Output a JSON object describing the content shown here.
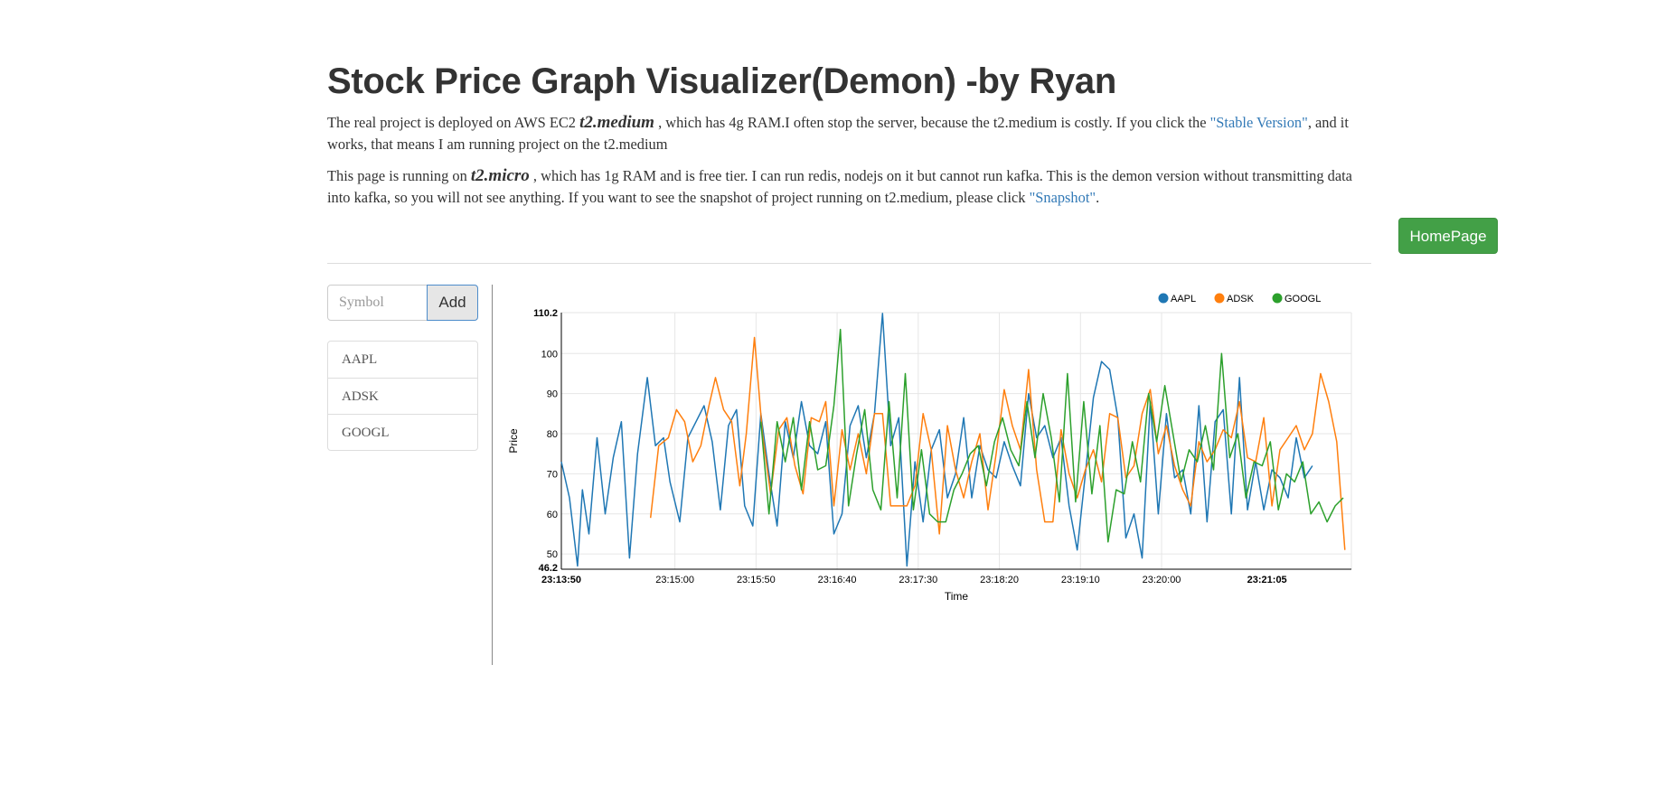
{
  "page": {
    "title": "Stock Price Graph Visualizer(Demon) -by Ryan",
    "para1": {
      "pre": "The real project is deployed on AWS EC2 ",
      "instance": "t2.medium",
      "mid": " , which has 4g RAM.I often stop the server, because the t2.medium is costly. If you click the ",
      "link": "\"Stable Version\"",
      "post": ", and it works, that means I am running project on the t2.medium"
    },
    "para2": {
      "pre": "This page is running on ",
      "instance": "t2.micro",
      "mid": " , which has 1g RAM and is free tier. I can run redis, nodejs on it but cannot run kafka. This is the demon version without transmitting data into kafka, so you will not see anything. If you want to see the snapshot of project running on t2.medium, please click ",
      "link": "\"Snapshot\"",
      "post": "."
    },
    "homepage_button": "HomePage"
  },
  "sidebar": {
    "symbol_placeholder": "Symbol",
    "add_button": "Add",
    "symbols": [
      "AAPL",
      "ADSK",
      "GOOGL"
    ]
  },
  "chart_data": {
    "type": "line",
    "xlabel": "Time",
    "ylabel": "Price",
    "ylim": [
      46.2,
      110.2
    ],
    "y_ticks": [
      50,
      60,
      70,
      80,
      90,
      100
    ],
    "y_extent_labels": [
      "46.2",
      "110.2"
    ],
    "xlim_seconds": [
      0,
      435
    ],
    "x_ticks": [
      {
        "t": 0,
        "label": "23:13:50",
        "bold": true
      },
      {
        "t": 70,
        "label": "23:15:00"
      },
      {
        "t": 120,
        "label": "23:15:50"
      },
      {
        "t": 170,
        "label": "23:16:40"
      },
      {
        "t": 220,
        "label": "23:17:30"
      },
      {
        "t": 270,
        "label": "23:18:20"
      },
      {
        "t": 320,
        "label": "23:19:10"
      },
      {
        "t": 370,
        "label": "23:20:00"
      },
      {
        "t": 435,
        "label": "23:21:05",
        "bold": true
      }
    ],
    "grid": true,
    "legend_position": "top-right",
    "series": [
      {
        "name": "AAPL",
        "color": "#1f77b4",
        "points": [
          [
            0,
            73
          ],
          [
            5,
            64
          ],
          [
            10,
            47
          ],
          [
            13,
            66
          ],
          [
            17,
            55
          ],
          [
            22,
            79
          ],
          [
            27,
            60
          ],
          [
            32,
            74
          ],
          [
            37,
            83
          ],
          [
            42,
            49
          ],
          [
            47,
            75
          ],
          [
            53,
            94
          ],
          [
            58,
            77
          ],
          [
            63,
            79
          ],
          [
            67,
            68
          ],
          [
            73,
            58
          ],
          [
            78,
            79
          ],
          [
            83,
            83
          ],
          [
            88,
            87
          ],
          [
            93,
            78
          ],
          [
            98,
            61
          ],
          [
            103,
            82
          ],
          [
            108,
            86
          ],
          [
            113,
            62
          ],
          [
            118,
            57
          ],
          [
            123,
            85
          ],
          [
            128,
            70
          ],
          [
            133,
            57
          ],
          [
            138,
            83
          ],
          [
            143,
            74
          ],
          [
            148,
            88
          ],
          [
            153,
            77
          ],
          [
            158,
            75
          ],
          [
            163,
            83
          ],
          [
            168,
            55
          ],
          [
            173,
            60
          ],
          [
            178,
            82
          ],
          [
            183,
            87
          ],
          [
            188,
            74
          ],
          [
            193,
            85
          ],
          [
            198,
            110
          ],
          [
            203,
            77
          ],
          [
            208,
            84
          ],
          [
            213,
            47
          ],
          [
            218,
            73
          ],
          [
            223,
            58
          ],
          [
            228,
            76
          ],
          [
            233,
            81
          ],
          [
            238,
            64
          ],
          [
            243,
            70
          ],
          [
            248,
            84
          ],
          [
            253,
            64
          ],
          [
            258,
            77
          ],
          [
            263,
            71
          ],
          [
            268,
            69
          ],
          [
            273,
            78
          ],
          [
            278,
            72
          ],
          [
            283,
            67
          ],
          [
            288,
            90
          ],
          [
            293,
            79
          ],
          [
            298,
            82
          ],
          [
            303,
            74
          ],
          [
            308,
            79
          ],
          [
            313,
            62
          ],
          [
            318,
            51
          ],
          [
            323,
            70
          ],
          [
            328,
            89
          ],
          [
            333,
            98
          ],
          [
            338,
            96
          ],
          [
            343,
            84
          ],
          [
            348,
            54
          ],
          [
            353,
            60
          ],
          [
            358,
            49
          ],
          [
            363,
            88
          ],
          [
            368,
            60
          ],
          [
            373,
            85
          ],
          [
            378,
            69
          ],
          [
            383,
            71
          ],
          [
            388,
            60
          ],
          [
            393,
            87
          ],
          [
            398,
            58
          ],
          [
            403,
            83
          ],
          [
            408,
            86
          ],
          [
            413,
            60
          ],
          [
            418,
            94
          ],
          [
            423,
            61
          ],
          [
            428,
            73
          ],
          [
            433,
            61
          ],
          [
            438,
            71
          ],
          [
            443,
            69
          ],
          [
            448,
            64
          ],
          [
            453,
            79
          ],
          [
            458,
            69
          ],
          [
            463,
            72
          ]
        ]
      },
      {
        "name": "ADSK",
        "color": "#ff7f0e",
        "points": [
          [
            55,
            59
          ],
          [
            60,
            77
          ],
          [
            66,
            79
          ],
          [
            71,
            86
          ],
          [
            76,
            83
          ],
          [
            81,
            73
          ],
          [
            86,
            77
          ],
          [
            91,
            87
          ],
          [
            95,
            94
          ],
          [
            100,
            86
          ],
          [
            105,
            83
          ],
          [
            110,
            67
          ],
          [
            114,
            80
          ],
          [
            119,
            104
          ],
          [
            124,
            80
          ],
          [
            129,
            65
          ],
          [
            134,
            81
          ],
          [
            139,
            84
          ],
          [
            144,
            72
          ],
          [
            149,
            65
          ],
          [
            154,
            84
          ],
          [
            159,
            83
          ],
          [
            163,
            88
          ],
          [
            168,
            62
          ],
          [
            173,
            81
          ],
          [
            178,
            71
          ],
          [
            183,
            80
          ],
          [
            188,
            70
          ],
          [
            193,
            85
          ],
          [
            198,
            85
          ],
          [
            203,
            62
          ],
          [
            208,
            62
          ],
          [
            213,
            62
          ],
          [
            218,
            67
          ],
          [
            223,
            85
          ],
          [
            228,
            76
          ],
          [
            233,
            55
          ],
          [
            238,
            82
          ],
          [
            243,
            71
          ],
          [
            248,
            64
          ],
          [
            253,
            73
          ],
          [
            258,
            80
          ],
          [
            263,
            61
          ],
          [
            268,
            75
          ],
          [
            273,
            91
          ],
          [
            278,
            82
          ],
          [
            283,
            76
          ],
          [
            288,
            96
          ],
          [
            293,
            71
          ],
          [
            298,
            58
          ],
          [
            303,
            58
          ],
          [
            308,
            81
          ],
          [
            313,
            70
          ],
          [
            318,
            64
          ],
          [
            323,
            71
          ],
          [
            328,
            76
          ],
          [
            333,
            68
          ],
          [
            338,
            85
          ],
          [
            343,
            84
          ],
          [
            348,
            69
          ],
          [
            353,
            72
          ],
          [
            358,
            85
          ],
          [
            363,
            91
          ],
          [
            368,
            75
          ],
          [
            373,
            82
          ],
          [
            378,
            72
          ],
          [
            383,
            66
          ],
          [
            388,
            62
          ],
          [
            393,
            78
          ],
          [
            398,
            73
          ],
          [
            403,
            76
          ],
          [
            408,
            81
          ],
          [
            413,
            79
          ],
          [
            418,
            88
          ],
          [
            423,
            74
          ],
          [
            428,
            73
          ],
          [
            433,
            84
          ],
          [
            438,
            62
          ],
          [
            443,
            76
          ],
          [
            448,
            79
          ],
          [
            453,
            82
          ],
          [
            458,
            76
          ],
          [
            463,
            80
          ],
          [
            468,
            95
          ],
          [
            473,
            88
          ],
          [
            478,
            78
          ],
          [
            483,
            51
          ]
        ]
      },
      {
        "name": "GOOGL",
        "color": "#2ca02c",
        "points": [
          [
            123,
            83
          ],
          [
            128,
            60
          ],
          [
            133,
            83
          ],
          [
            138,
            73
          ],
          [
            143,
            84
          ],
          [
            148,
            66
          ],
          [
            153,
            83
          ],
          [
            158,
            71
          ],
          [
            163,
            72
          ],
          [
            168,
            87
          ],
          [
            172,
            106
          ],
          [
            177,
            62
          ],
          [
            182,
            75
          ],
          [
            187,
            86
          ],
          [
            192,
            66
          ],
          [
            197,
            61
          ],
          [
            202,
            88
          ],
          [
            207,
            64
          ],
          [
            212,
            95
          ],
          [
            217,
            61
          ],
          [
            222,
            76
          ],
          [
            227,
            60
          ],
          [
            232,
            58
          ],
          [
            237,
            58
          ],
          [
            242,
            66
          ],
          [
            247,
            70
          ],
          [
            252,
            75
          ],
          [
            257,
            77
          ],
          [
            262,
            67
          ],
          [
            267,
            78
          ],
          [
            272,
            84
          ],
          [
            277,
            76
          ],
          [
            282,
            72
          ],
          [
            287,
            88
          ],
          [
            292,
            74
          ],
          [
            297,
            90
          ],
          [
            302,
            79
          ],
          [
            307,
            63
          ],
          [
            312,
            95
          ],
          [
            317,
            63
          ],
          [
            322,
            88
          ],
          [
            327,
            65
          ],
          [
            332,
            82
          ],
          [
            337,
            53
          ],
          [
            342,
            66
          ],
          [
            347,
            65
          ],
          [
            352,
            78
          ],
          [
            357,
            68
          ],
          [
            362,
            90
          ],
          [
            367,
            78
          ],
          [
            372,
            92
          ],
          [
            377,
            80
          ],
          [
            382,
            68
          ],
          [
            387,
            76
          ],
          [
            392,
            73
          ],
          [
            397,
            82
          ],
          [
            402,
            71
          ],
          [
            407,
            100
          ],
          [
            412,
            74
          ],
          [
            417,
            80
          ],
          [
            422,
            64
          ],
          [
            427,
            73
          ],
          [
            432,
            72
          ],
          [
            437,
            78
          ],
          [
            442,
            61
          ],
          [
            447,
            70
          ],
          [
            452,
            68
          ],
          [
            457,
            73
          ],
          [
            462,
            60
          ],
          [
            467,
            63
          ],
          [
            472,
            58
          ],
          [
            477,
            62
          ],
          [
            482,
            64
          ]
        ]
      }
    ]
  }
}
